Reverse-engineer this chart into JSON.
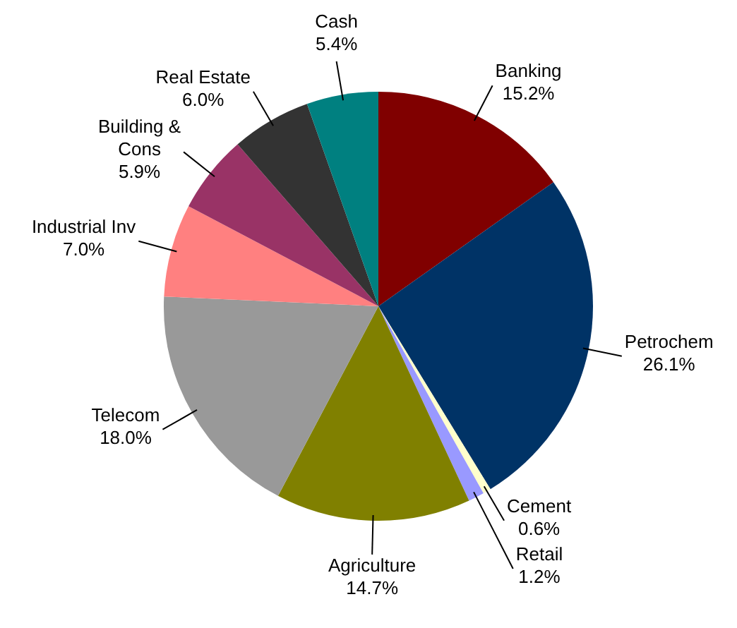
{
  "chart_data": {
    "type": "pie",
    "categories": [
      "Banking",
      "Petrochem",
      "Cement",
      "Retail",
      "Agriculture",
      "Telecom",
      "Industrial Inv",
      "Building & Cons",
      "Real Estate",
      "Cash"
    ],
    "values": [
      15.2,
      26.1,
      0.6,
      1.2,
      14.7,
      18.0,
      7.0,
      5.9,
      6.0,
      5.4
    ],
    "value_labels": [
      "15.2%",
      "26.1%",
      "0.6%",
      "1.2%",
      "14.7%",
      "18.0%",
      "7.0%",
      "5.9%",
      "6.0%",
      "5.4%"
    ],
    "colors": [
      "#800000",
      "#003366",
      "#ffffcc",
      "#9999ff",
      "#808000",
      "#999999",
      "#ff8080",
      "#993366",
      "#333333",
      "#008080"
    ],
    "legend": false
  }
}
